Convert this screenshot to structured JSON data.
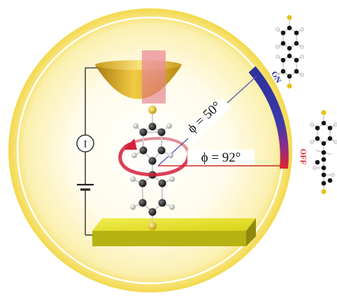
{
  "labels": {
    "on": "ON",
    "off": "OFF",
    "current_symbol": "I",
    "angle_on": "ϕ = 50°",
    "angle_off": "ϕ = 92°"
  },
  "colors": {
    "halo_outer": "#f3d84a",
    "halo_inner": "#fffbe6",
    "gold_tip": "#e3b21e",
    "gold_tip_dark": "#a87a10",
    "electrode_plate": "#e6e21a",
    "on_color": "#2d2f9b",
    "off_color": "#e0242d",
    "angle_line_on": "#5b5bb0",
    "angle_line_off": "#d12a2a",
    "sulfur": "#e6c21c",
    "carbon": "#1a1a1a",
    "hydrogen": "#dcdcdc",
    "circuit_wire": "#444444"
  }
}
